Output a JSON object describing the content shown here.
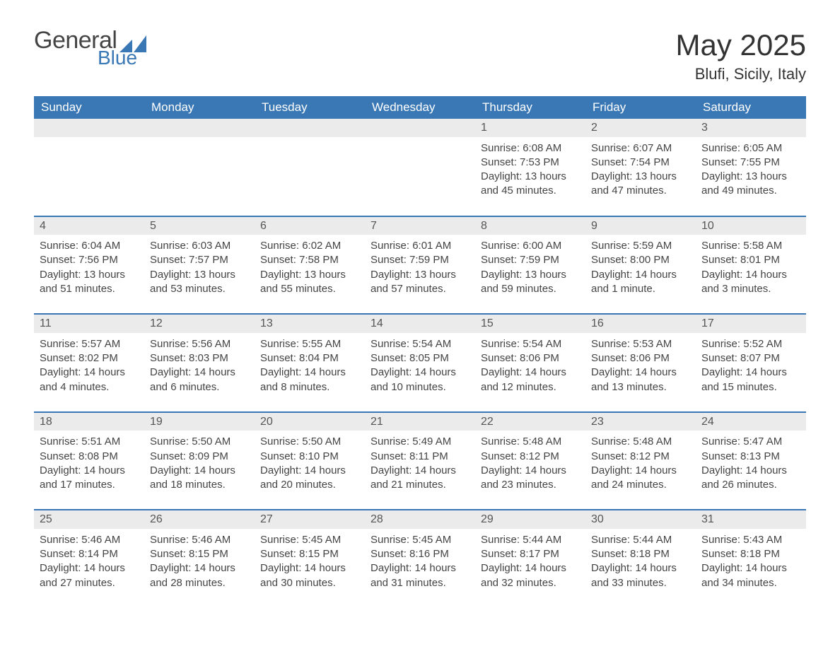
{
  "brand": {
    "word1": "General",
    "word2": "Blue",
    "logo_color": "#3a78b5",
    "text_gray": "#444444"
  },
  "header": {
    "title": "May 2025",
    "location": "Blufi, Sicily, Italy"
  },
  "colors": {
    "header_bg": "#3a78b5",
    "header_text": "#ffffff",
    "daynum_bg": "#ebebeb",
    "body_text": "#444444",
    "rule": "#3a78b5"
  },
  "weekdays": [
    "Sunday",
    "Monday",
    "Tuesday",
    "Wednesday",
    "Thursday",
    "Friday",
    "Saturday"
  ],
  "weeks": [
    [
      null,
      null,
      null,
      null,
      {
        "n": "1",
        "sunrise": "Sunrise: 6:08 AM",
        "sunset": "Sunset: 7:53 PM",
        "daylight": "Daylight: 13 hours and 45 minutes."
      },
      {
        "n": "2",
        "sunrise": "Sunrise: 6:07 AM",
        "sunset": "Sunset: 7:54 PM",
        "daylight": "Daylight: 13 hours and 47 minutes."
      },
      {
        "n": "3",
        "sunrise": "Sunrise: 6:05 AM",
        "sunset": "Sunset: 7:55 PM",
        "daylight": "Daylight: 13 hours and 49 minutes."
      }
    ],
    [
      {
        "n": "4",
        "sunrise": "Sunrise: 6:04 AM",
        "sunset": "Sunset: 7:56 PM",
        "daylight": "Daylight: 13 hours and 51 minutes."
      },
      {
        "n": "5",
        "sunrise": "Sunrise: 6:03 AM",
        "sunset": "Sunset: 7:57 PM",
        "daylight": "Daylight: 13 hours and 53 minutes."
      },
      {
        "n": "6",
        "sunrise": "Sunrise: 6:02 AM",
        "sunset": "Sunset: 7:58 PM",
        "daylight": "Daylight: 13 hours and 55 minutes."
      },
      {
        "n": "7",
        "sunrise": "Sunrise: 6:01 AM",
        "sunset": "Sunset: 7:59 PM",
        "daylight": "Daylight: 13 hours and 57 minutes."
      },
      {
        "n": "8",
        "sunrise": "Sunrise: 6:00 AM",
        "sunset": "Sunset: 7:59 PM",
        "daylight": "Daylight: 13 hours and 59 minutes."
      },
      {
        "n": "9",
        "sunrise": "Sunrise: 5:59 AM",
        "sunset": "Sunset: 8:00 PM",
        "daylight": "Daylight: 14 hours and 1 minute."
      },
      {
        "n": "10",
        "sunrise": "Sunrise: 5:58 AM",
        "sunset": "Sunset: 8:01 PM",
        "daylight": "Daylight: 14 hours and 3 minutes."
      }
    ],
    [
      {
        "n": "11",
        "sunrise": "Sunrise: 5:57 AM",
        "sunset": "Sunset: 8:02 PM",
        "daylight": "Daylight: 14 hours and 4 minutes."
      },
      {
        "n": "12",
        "sunrise": "Sunrise: 5:56 AM",
        "sunset": "Sunset: 8:03 PM",
        "daylight": "Daylight: 14 hours and 6 minutes."
      },
      {
        "n": "13",
        "sunrise": "Sunrise: 5:55 AM",
        "sunset": "Sunset: 8:04 PM",
        "daylight": "Daylight: 14 hours and 8 minutes."
      },
      {
        "n": "14",
        "sunrise": "Sunrise: 5:54 AM",
        "sunset": "Sunset: 8:05 PM",
        "daylight": "Daylight: 14 hours and 10 minutes."
      },
      {
        "n": "15",
        "sunrise": "Sunrise: 5:54 AM",
        "sunset": "Sunset: 8:06 PM",
        "daylight": "Daylight: 14 hours and 12 minutes."
      },
      {
        "n": "16",
        "sunrise": "Sunrise: 5:53 AM",
        "sunset": "Sunset: 8:06 PM",
        "daylight": "Daylight: 14 hours and 13 minutes."
      },
      {
        "n": "17",
        "sunrise": "Sunrise: 5:52 AM",
        "sunset": "Sunset: 8:07 PM",
        "daylight": "Daylight: 14 hours and 15 minutes."
      }
    ],
    [
      {
        "n": "18",
        "sunrise": "Sunrise: 5:51 AM",
        "sunset": "Sunset: 8:08 PM",
        "daylight": "Daylight: 14 hours and 17 minutes."
      },
      {
        "n": "19",
        "sunrise": "Sunrise: 5:50 AM",
        "sunset": "Sunset: 8:09 PM",
        "daylight": "Daylight: 14 hours and 18 minutes."
      },
      {
        "n": "20",
        "sunrise": "Sunrise: 5:50 AM",
        "sunset": "Sunset: 8:10 PM",
        "daylight": "Daylight: 14 hours and 20 minutes."
      },
      {
        "n": "21",
        "sunrise": "Sunrise: 5:49 AM",
        "sunset": "Sunset: 8:11 PM",
        "daylight": "Daylight: 14 hours and 21 minutes."
      },
      {
        "n": "22",
        "sunrise": "Sunrise: 5:48 AM",
        "sunset": "Sunset: 8:12 PM",
        "daylight": "Daylight: 14 hours and 23 minutes."
      },
      {
        "n": "23",
        "sunrise": "Sunrise: 5:48 AM",
        "sunset": "Sunset: 8:12 PM",
        "daylight": "Daylight: 14 hours and 24 minutes."
      },
      {
        "n": "24",
        "sunrise": "Sunrise: 5:47 AM",
        "sunset": "Sunset: 8:13 PM",
        "daylight": "Daylight: 14 hours and 26 minutes."
      }
    ],
    [
      {
        "n": "25",
        "sunrise": "Sunrise: 5:46 AM",
        "sunset": "Sunset: 8:14 PM",
        "daylight": "Daylight: 14 hours and 27 minutes."
      },
      {
        "n": "26",
        "sunrise": "Sunrise: 5:46 AM",
        "sunset": "Sunset: 8:15 PM",
        "daylight": "Daylight: 14 hours and 28 minutes."
      },
      {
        "n": "27",
        "sunrise": "Sunrise: 5:45 AM",
        "sunset": "Sunset: 8:15 PM",
        "daylight": "Daylight: 14 hours and 30 minutes."
      },
      {
        "n": "28",
        "sunrise": "Sunrise: 5:45 AM",
        "sunset": "Sunset: 8:16 PM",
        "daylight": "Daylight: 14 hours and 31 minutes."
      },
      {
        "n": "29",
        "sunrise": "Sunrise: 5:44 AM",
        "sunset": "Sunset: 8:17 PM",
        "daylight": "Daylight: 14 hours and 32 minutes."
      },
      {
        "n": "30",
        "sunrise": "Sunrise: 5:44 AM",
        "sunset": "Sunset: 8:18 PM",
        "daylight": "Daylight: 14 hours and 33 minutes."
      },
      {
        "n": "31",
        "sunrise": "Sunrise: 5:43 AM",
        "sunset": "Sunset: 8:18 PM",
        "daylight": "Daylight: 14 hours and 34 minutes."
      }
    ]
  ]
}
